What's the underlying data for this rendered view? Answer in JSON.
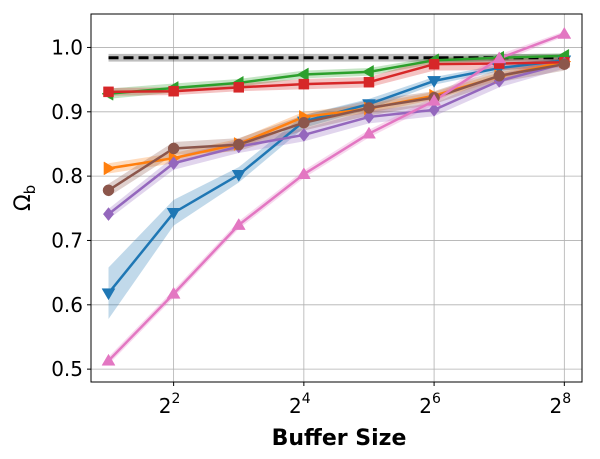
{
  "chart_data": {
    "type": "line",
    "xlabel": "Buffer Size",
    "ylabel_base": "Ω",
    "ylabel_sub": "b",
    "x_scale": "log2",
    "x": [
      2,
      4,
      8,
      16,
      32,
      64,
      128,
      256
    ],
    "x_ticks": [
      {
        "value": 4,
        "base": "2",
        "exp": "2"
      },
      {
        "value": 16,
        "base": "2",
        "exp": "4"
      },
      {
        "value": 64,
        "base": "2",
        "exp": "6"
      },
      {
        "value": 256,
        "base": "2",
        "exp": "8"
      }
    ],
    "xlim": [
      1.66,
      309
    ],
    "ylim": [
      0.48,
      1.052
    ],
    "y_ticks": [
      "0.5",
      "0.6",
      "0.7",
      "0.8",
      "0.9",
      "1.0"
    ],
    "grid": true,
    "reference": {
      "value": 0.984,
      "band": [
        0.978,
        0.99
      ],
      "color": "#000000"
    },
    "series": [
      {
        "color": "#1f77b4",
        "marker": "triangle-down",
        "values": [
          0.618,
          0.743,
          0.802,
          0.885,
          0.912,
          0.948,
          0.968,
          0.98
        ],
        "spread": [
          0.04,
          0.02,
          0.012,
          0.01,
          0.008,
          0.006,
          0.005,
          0.004
        ]
      },
      {
        "color": "#ff7f0e",
        "marker": "triangle-right",
        "values": [
          0.812,
          0.828,
          0.85,
          0.892,
          0.905,
          0.925,
          0.955,
          0.978
        ],
        "spread": [
          0.008,
          0.008,
          0.008,
          0.008,
          0.007,
          0.006,
          0.006,
          0.005
        ]
      },
      {
        "color": "#2ca02c",
        "marker": "triangle-left",
        "values": [
          0.928,
          0.937,
          0.945,
          0.958,
          0.962,
          0.98,
          0.984,
          0.987
        ],
        "spread": [
          0.008,
          0.007,
          0.006,
          0.006,
          0.006,
          0.005,
          0.005,
          0.004
        ]
      },
      {
        "color": "#d62728",
        "marker": "square",
        "values": [
          0.931,
          0.932,
          0.938,
          0.943,
          0.946,
          0.974,
          0.975,
          0.977
        ],
        "spread": [
          0.006,
          0.006,
          0.006,
          0.008,
          0.008,
          0.01,
          0.01,
          0.008
        ]
      },
      {
        "color": "#9467bd",
        "marker": "diamond",
        "values": [
          0.741,
          0.82,
          0.846,
          0.864,
          0.892,
          0.903,
          0.948,
          0.975
        ],
        "spread": [
          0.008,
          0.01,
          0.01,
          0.01,
          0.01,
          0.01,
          0.01,
          0.008
        ]
      },
      {
        "color": "#8c564b",
        "marker": "circle",
        "values": [
          0.778,
          0.843,
          0.849,
          0.883,
          0.906,
          0.922,
          0.956,
          0.974
        ],
        "spread": [
          0.01,
          0.01,
          0.01,
          0.012,
          0.012,
          0.01,
          0.01,
          0.01
        ]
      },
      {
        "color": "#e377c2",
        "marker": "triangle-up",
        "values": [
          0.513,
          0.617,
          0.724,
          0.803,
          0.866,
          0.917,
          0.983,
          1.021
        ],
        "spread": [
          0.006,
          0.006,
          0.006,
          0.006,
          0.006,
          0.006,
          0.006,
          0.004
        ]
      }
    ]
  }
}
